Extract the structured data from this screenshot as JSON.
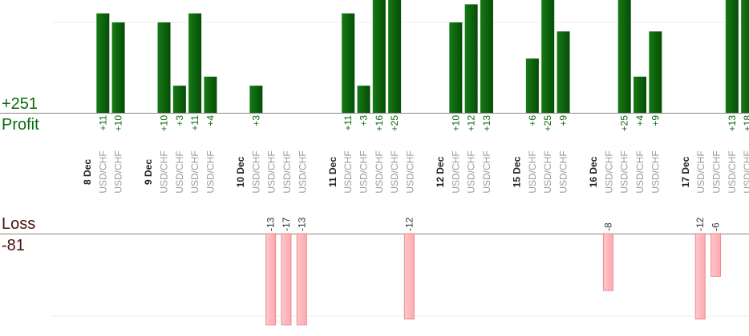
{
  "summary": {
    "profit_total": "+251",
    "profit_label": "Profit",
    "loss_label": "Loss",
    "loss_total": "-81"
  },
  "colors": {
    "profit_bar": "#0b5e0b",
    "profit_text": "#0a6a0a",
    "loss_bar_fill": "#ffb6b9",
    "loss_bar_stroke": "#e58e93",
    "loss_text": "#333333",
    "day_text": "#222222",
    "pair_text": "#9a9a9a",
    "axis": "#888888",
    "grid": "#eeeeee"
  },
  "chart_data": {
    "type": "bar",
    "days": [
      {
        "label": "8 Dec",
        "trades": [
          {
            "pair": "USD/CHF",
            "profit": 11
          },
          {
            "pair": "USD/CHF",
            "profit": 10
          }
        ]
      },
      {
        "label": "9 Dec",
        "trades": [
          {
            "pair": "USD/CHF",
            "profit": 10
          },
          {
            "pair": "USD/CHF",
            "profit": 3
          },
          {
            "pair": "USD/CHF",
            "profit": 11
          },
          {
            "pair": "USD/CHF",
            "profit": 4
          }
        ]
      },
      {
        "label": "10 Dec",
        "trades": [
          {
            "pair": "USD/CHF",
            "profit": 3
          },
          {
            "pair": "USD/CHF",
            "loss": -13
          },
          {
            "pair": "USD/CHF",
            "loss": -17
          },
          {
            "pair": "USD/CHF",
            "loss": -13
          }
        ]
      },
      {
        "label": "11 Dec",
        "trades": [
          {
            "pair": "USD/CHF",
            "profit": 11
          },
          {
            "pair": "USD/CHF",
            "profit": 3
          },
          {
            "pair": "USD/CHF",
            "profit": 16
          },
          {
            "pair": "USD/CHF",
            "profit": 25
          },
          {
            "pair": "USD/CHF",
            "loss": -12
          }
        ]
      },
      {
        "label": "12 Dec",
        "trades": [
          {
            "pair": "USD/CHF",
            "profit": 10
          },
          {
            "pair": "USD/CHF",
            "profit": 12
          },
          {
            "pair": "USD/CHF",
            "profit": 13
          }
        ]
      },
      {
        "label": "15 Dec",
        "trades": [
          {
            "pair": "USD/CHF",
            "profit": 6
          },
          {
            "pair": "USD/CHF",
            "profit": 25
          },
          {
            "pair": "USD/CHF",
            "profit": 9
          }
        ]
      },
      {
        "label": "16 Dec",
        "trades": [
          {
            "pair": "USD/CHF",
            "loss": -8
          },
          {
            "pair": "USD/CHF",
            "profit": 25
          },
          {
            "pair": "USD/CHF",
            "profit": 4
          },
          {
            "pair": "USD/CHF",
            "profit": 9
          }
        ]
      },
      {
        "label": "17 Dec",
        "trades": [
          {
            "pair": "USD/CHF",
            "loss": -12
          },
          {
            "pair": "USD/CHF",
            "loss": -6
          },
          {
            "pair": "USD/CHF",
            "profit": 13
          },
          {
            "pair": "USD/CHF",
            "profit": 18
          }
        ]
      }
    ],
    "profit_axis_max": 11,
    "loss_axis_max": 10,
    "grid": true
  }
}
